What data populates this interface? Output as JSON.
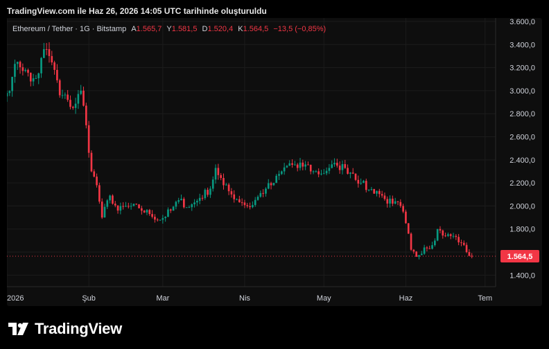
{
  "caption": "TradingView.com ile Haz 26, 2026 14:05 UTC tarihinde oluşturuldu",
  "brand": {
    "name": "TradingView",
    "logo_icon": "tradingview-logo-icon"
  },
  "legend": {
    "symbol": "Ethereum / Tether · 1G · Bitstamp",
    "open_label": "A",
    "open": "1.565,7",
    "high_label": "Y",
    "high": "1.581,5",
    "low_label": "D",
    "low": "1.520,4",
    "close_label": "K",
    "close": "1.564,5",
    "change": "−13,5 (−0,85%)"
  },
  "colors": {
    "up": "#089981",
    "down": "#f23645",
    "background": "#0e0e0e",
    "grid": "#1c1c1c"
  },
  "chart_data": {
    "type": "candlestick",
    "y_ticks": [
      "3.600,0",
      "3.400,0",
      "3.200,0",
      "3.000,0",
      "2.800,0",
      "2.600,0",
      "2.400,0",
      "2.200,0",
      "2.000,0",
      "1.800,0",
      "1.600,0",
      "1.400,0"
    ],
    "y_values": [
      3600,
      3400,
      3200,
      3000,
      2800,
      2600,
      2400,
      2200,
      2000,
      1800,
      1600,
      1400
    ],
    "x_ticks": [
      {
        "label": "2026",
        "date": "2026-01-01"
      },
      {
        "label": "Şub",
        "date": "2026-02-01"
      },
      {
        "label": "Mar",
        "date": "2026-03-01"
      },
      {
        "label": "Nis",
        "date": "2026-04-01"
      },
      {
        "label": "May",
        "date": "2026-05-01"
      },
      {
        "label": "Haz",
        "date": "2026-06-01"
      },
      {
        "label": "Tem",
        "date": "2026-07-01"
      }
    ],
    "ylim": [
      1300,
      3630
    ],
    "xlim": [
      "2026-01-01",
      "2026-07-05"
    ],
    "last_price": "1.564,5",
    "last_value": 1564.5,
    "grid": true,
    "close_path": [
      [
        "2026-01-01",
        2980
      ],
      [
        "2026-01-03",
        3120
      ],
      [
        "2026-01-05",
        3250
      ],
      [
        "2026-01-08",
        3180
      ],
      [
        "2026-01-10",
        3080
      ],
      [
        "2026-01-13",
        3150
      ],
      [
        "2026-01-15",
        3360
      ],
      [
        "2026-01-17",
        3300
      ],
      [
        "2026-01-19",
        3180
      ],
      [
        "2026-01-21",
        2960
      ],
      [
        "2026-01-24",
        2920
      ],
      [
        "2026-01-26",
        2850
      ],
      [
        "2026-01-29",
        3000
      ],
      [
        "2026-01-31",
        2700
      ],
      [
        "2026-02-02",
        2300
      ],
      [
        "2026-02-04",
        2180
      ],
      [
        "2026-02-06",
        1900
      ],
      [
        "2026-02-09",
        2090
      ],
      [
        "2026-02-12",
        1960
      ],
      [
        "2026-02-16",
        2000
      ],
      [
        "2026-02-20",
        1980
      ],
      [
        "2026-02-24",
        1930
      ],
      [
        "2026-02-28",
        1880
      ],
      [
        "2026-03-04",
        1960
      ],
      [
        "2026-03-07",
        2050
      ],
      [
        "2026-03-11",
        1990
      ],
      [
        "2026-03-15",
        2070
      ],
      [
        "2026-03-19",
        2150
      ],
      [
        "2026-03-21",
        2330
      ],
      [
        "2026-03-24",
        2180
      ],
      [
        "2026-03-27",
        2100
      ],
      [
        "2026-03-31",
        2030
      ],
      [
        "2026-04-03",
        1990
      ],
      [
        "2026-04-06",
        2080
      ],
      [
        "2026-04-09",
        2150
      ],
      [
        "2026-04-12",
        2200
      ],
      [
        "2026-04-15",
        2300
      ],
      [
        "2026-04-18",
        2370
      ],
      [
        "2026-04-21",
        2330
      ],
      [
        "2026-04-24",
        2360
      ],
      [
        "2026-04-27",
        2300
      ],
      [
        "2026-04-30",
        2280
      ],
      [
        "2026-05-03",
        2330
      ],
      [
        "2026-05-06",
        2350
      ],
      [
        "2026-05-09",
        2330
      ],
      [
        "2026-05-12",
        2280
      ],
      [
        "2026-05-15",
        2200
      ],
      [
        "2026-05-18",
        2140
      ],
      [
        "2026-05-21",
        2130
      ],
      [
        "2026-05-24",
        2060
      ],
      [
        "2026-05-27",
        2020
      ],
      [
        "2026-05-30",
        2000
      ],
      [
        "2026-06-01",
        1850
      ],
      [
        "2026-06-03",
        1620
      ],
      [
        "2026-06-05",
        1560
      ],
      [
        "2026-06-08",
        1640
      ],
      [
        "2026-06-11",
        1660
      ],
      [
        "2026-06-13",
        1800
      ],
      [
        "2026-06-16",
        1740
      ],
      [
        "2026-06-19",
        1740
      ],
      [
        "2026-06-22",
        1680
      ],
      [
        "2026-06-24",
        1600
      ],
      [
        "2026-06-26",
        1564.5
      ]
    ]
  }
}
